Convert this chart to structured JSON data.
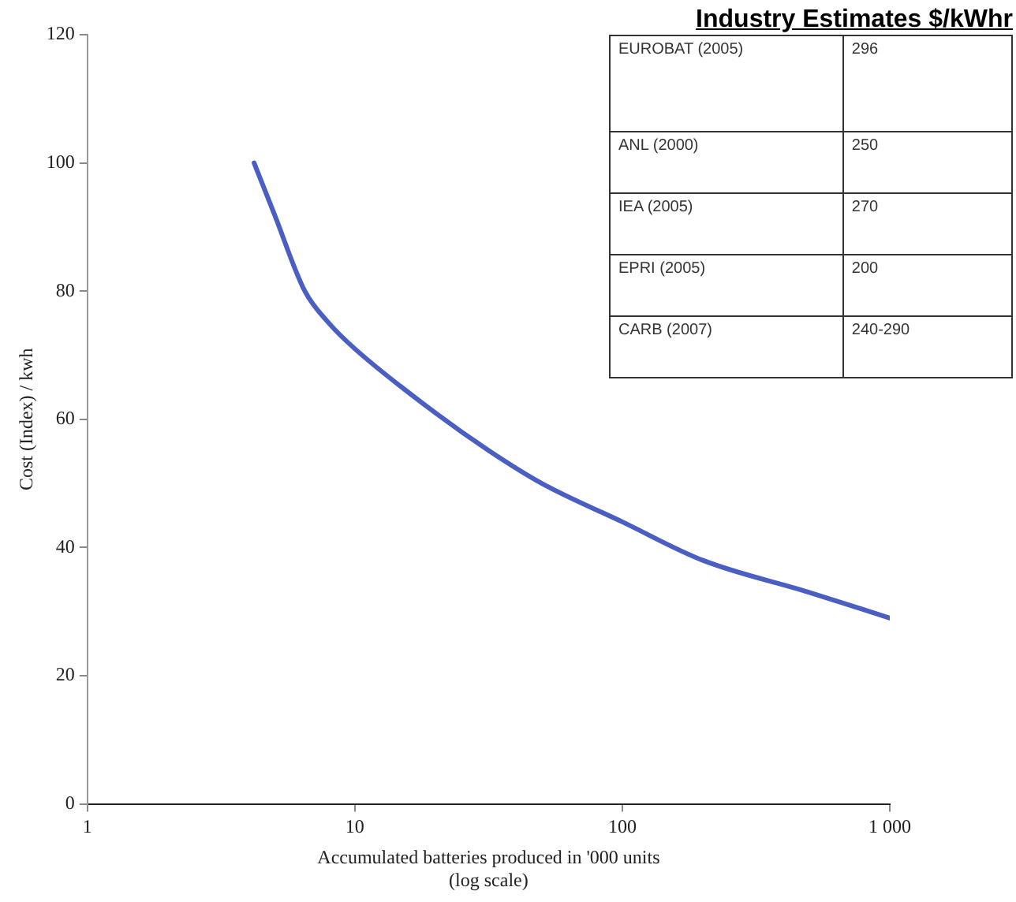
{
  "chart_data": {
    "type": "line",
    "xlabel": "Accumulated batteries produced in '000 units\n(log scale)",
    "ylabel": "Cost (Index) / kwh",
    "log": "x",
    "xlim": [
      1,
      1000
    ],
    "xticks": [
      1,
      10,
      100,
      {
        "value": 1000,
        "label": "1 000"
      }
    ],
    "ylim": [
      0,
      120
    ],
    "yticks": [
      0,
      20,
      40,
      60,
      80,
      100,
      120
    ],
    "grid": false,
    "legend": false,
    "marker": "none",
    "line_style": "solid",
    "series": [
      {
        "color": "#4a5fc1",
        "x": [
          4.2,
          5,
          6.5,
          8,
          10,
          20,
          32,
          50,
          100,
          200,
          500,
          1000
        ],
        "values": [
          100,
          92,
          80,
          75,
          71,
          61,
          55,
          50,
          44,
          38,
          33,
          29
        ]
      }
    ],
    "annotations": [
      "Industry Estimates $/kWhr",
      "EUROBAT (2005)",
      "296",
      "ANL (2000)",
      "250",
      "IEA (2005)",
      "270",
      "EPRI (2005)",
      "200",
      "CARB (2007)",
      "240-290"
    ]
  }
}
